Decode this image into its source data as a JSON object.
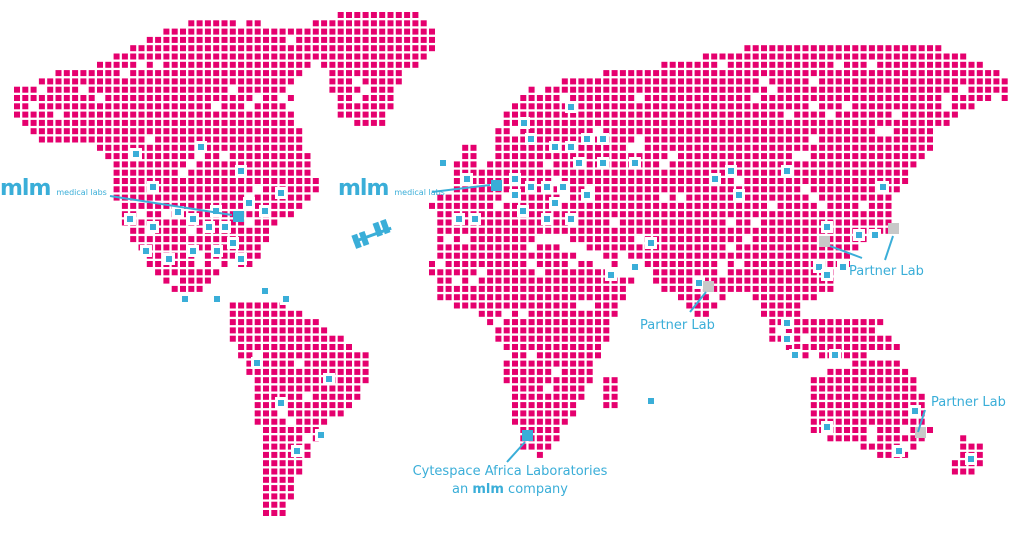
{
  "colors": {
    "land": "#e5006e",
    "office": "#3aaed8",
    "partner": "#c8c8c8",
    "background": "#ffffff"
  },
  "labels": {
    "hq_na": {
      "brand": "mlm",
      "sub": "medical labs"
    },
    "hq_eu": {
      "brand": "mlm",
      "sub": "medical labs"
    },
    "partner_asia_east": "Partner Lab",
    "partner_india": "Partner Lab",
    "partner_australia": "Partner Lab",
    "africa_line1": "Cytespace Africa Laboratories",
    "africa_line2_prefix": "an ",
    "africa_line2_brand": "mlm",
    "africa_line2_suffix": " company"
  },
  "icons": {
    "satellite": "satellite-icon"
  }
}
